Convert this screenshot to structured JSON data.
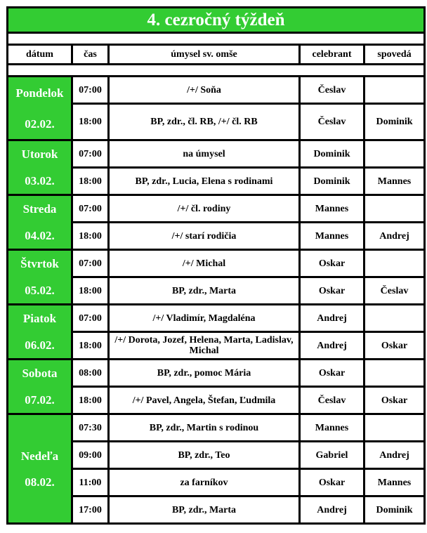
{
  "title": "4. cezročný týždeň",
  "headers": {
    "date": "dátum",
    "time": "čas",
    "intention": "úmysel sv. omše",
    "celebrant": "celebrant",
    "confessor": "spovedá"
  },
  "colors": {
    "accent": "#33cc33",
    "border": "#000000"
  },
  "days": [
    {
      "name": "Pondelok",
      "date": "02.02.",
      "masses": [
        {
          "time": "07:00",
          "intention": "/+/ Soňa",
          "celebrant": "Česlav",
          "confessor": ""
        },
        {
          "time": "18:00",
          "intention": "BP, zdr., čl. RB, /+/ čl. RB",
          "celebrant": "Česlav",
          "confessor": "Dominik"
        }
      ]
    },
    {
      "name": "Utorok",
      "date": "03.02.",
      "masses": [
        {
          "time": "07:00",
          "intention": "na úmysel",
          "celebrant": "Dominik",
          "confessor": ""
        },
        {
          "time": "18:00",
          "intention": "BP, zdr., Lucia, Elena s rodinami",
          "celebrant": "Dominik",
          "confessor": "Mannes"
        }
      ]
    },
    {
      "name": "Streda",
      "date": "04.02.",
      "masses": [
        {
          "time": "07:00",
          "intention": "/+/ čl. rodiny",
          "celebrant": "Mannes",
          "confessor": ""
        },
        {
          "time": "18:00",
          "intention": "/+/ starí rodičia",
          "celebrant": "Mannes",
          "confessor": "Andrej"
        }
      ]
    },
    {
      "name": "Štvrtok",
      "date": "05.02.",
      "masses": [
        {
          "time": "07:00",
          "intention": "/+/ Michal",
          "celebrant": "Oskar",
          "confessor": ""
        },
        {
          "time": "18:00",
          "intention": "BP, zdr., Marta",
          "celebrant": "Oskar",
          "confessor": "Česlav"
        }
      ]
    },
    {
      "name": "Piatok",
      "date": "06.02.",
      "masses": [
        {
          "time": "07:00",
          "intention": "/+/ Vladimír, Magdaléna",
          "celebrant": "Andrej",
          "confessor": ""
        },
        {
          "time": "18:00",
          "intention": "/+/ Dorota, Jozef, Helena, Marta, Ladislav, Michal",
          "celebrant": "Andrej",
          "confessor": "Oskar"
        }
      ]
    },
    {
      "name": "Sobota",
      "date": "07.02.",
      "masses": [
        {
          "time": "08:00",
          "intention": "BP, zdr., pomoc Mária",
          "celebrant": "Oskar",
          "confessor": ""
        },
        {
          "time": "18:00",
          "intention": "/+/ Pavel, Angela, Štefan, Ľudmila",
          "celebrant": "Česlav",
          "confessor": "Oskar"
        }
      ]
    },
    {
      "name": "Nedeľa",
      "date": "08.02.",
      "masses": [
        {
          "time": "07:30",
          "intention": "BP, zdr., Martin s rodinou",
          "celebrant": "Mannes",
          "confessor": ""
        },
        {
          "time": "09:00",
          "intention": "BP, zdr., Teo",
          "celebrant": "Gabriel",
          "confessor": "Andrej"
        },
        {
          "time": "11:00",
          "intention": "za farníkov",
          "celebrant": "Oskar",
          "confessor": "Mannes"
        },
        {
          "time": "17:00",
          "intention": "BP, zdr., Marta",
          "celebrant": "Andrej",
          "confessor": "Dominik"
        }
      ]
    }
  ]
}
